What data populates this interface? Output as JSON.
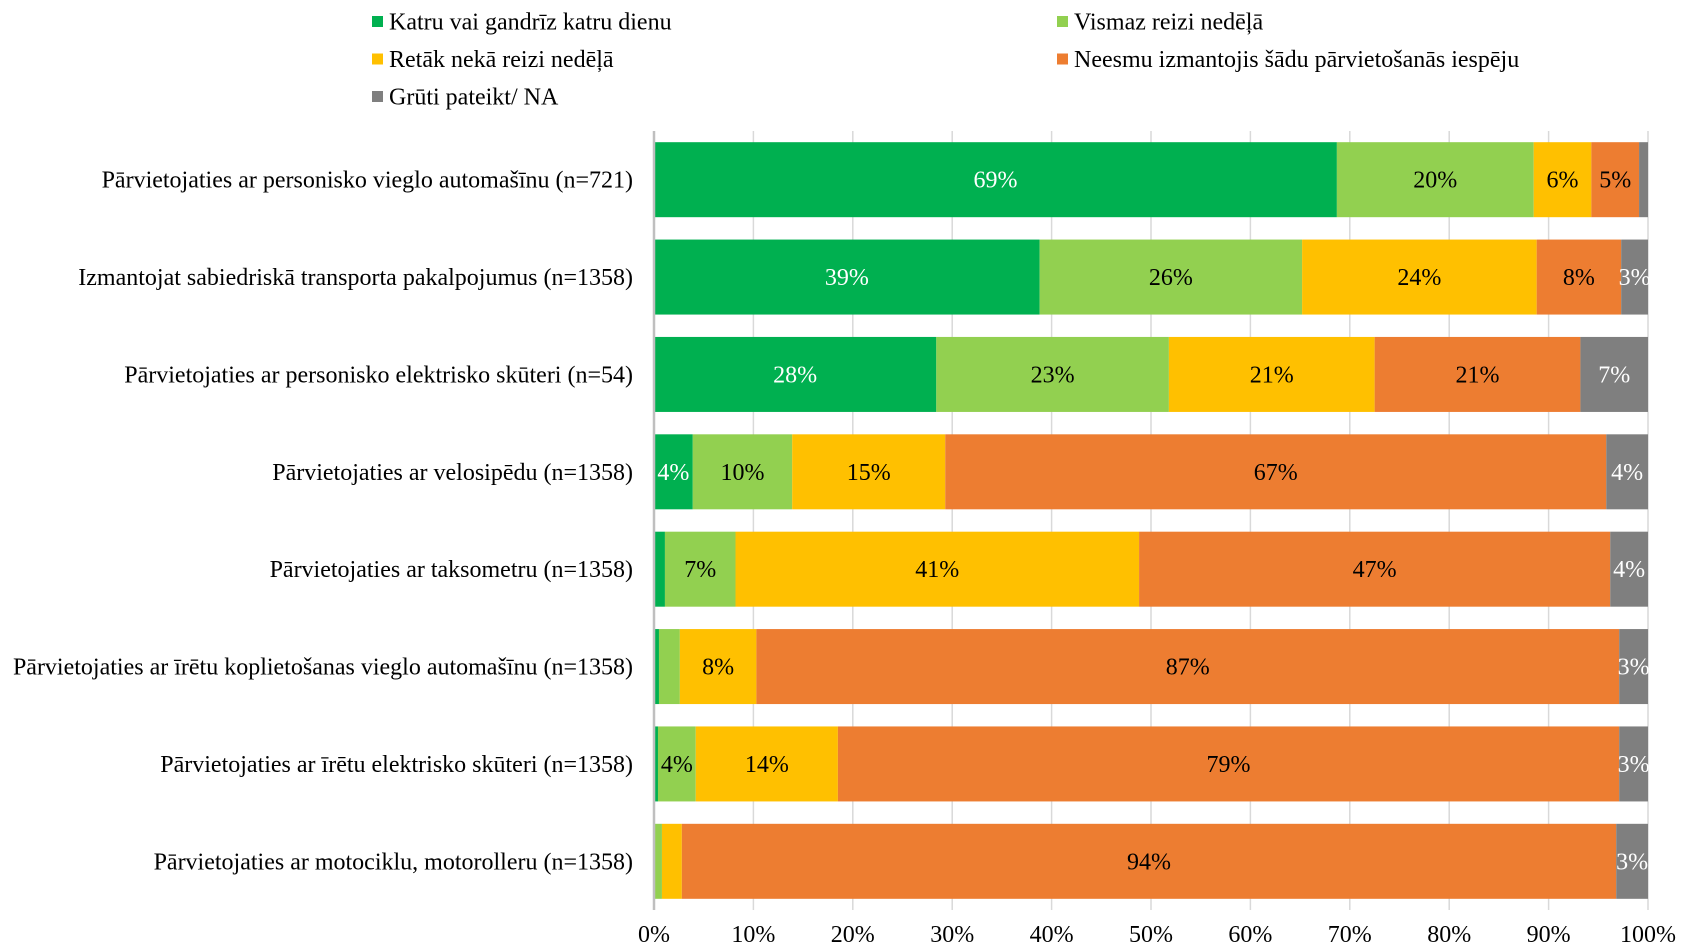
{
  "chart_data": {
    "type": "bar",
    "orientation": "horizontal",
    "stacked": true,
    "categories": [
      "Pārvietojaties ar personisko vieglo automašīnu (n=721)",
      "Izmantojat sabiedriskā transporta pakalpojumus (n=1358)",
      "Pārvietojaties ar personisko elektrisko skūteri (n=54)",
      "Pārvietojaties ar velosipēdu (n=1358)",
      "Pārvietojaties ar taksometru (n=1358)",
      "Pārvietojaties ar īrētu koplietošanas vieglo automašīnu (n=1358)",
      "Pārvietojaties ar īrētu elektrisko skūteri (n=1358)",
      "Pārvietojaties ar motociklu, motorolleru (n=1358)"
    ],
    "series": [
      {
        "name": "Katru vai gandrīz katru dienu",
        "color": "#00B050",
        "label_color": "#FFFFFF",
        "values": [
          68.7,
          38.8,
          28.4,
          3.9,
          1.1,
          0.5,
          0.4,
          0.1
        ],
        "labels": [
          "69%",
          "39%",
          "28%",
          "4%",
          "",
          "",
          "",
          ""
        ]
      },
      {
        "name": "Vismaz reizi nedēļā",
        "color": "#92D050",
        "label_color": "#000000",
        "values": [
          19.8,
          26.4,
          23.4,
          10.0,
          7.1,
          2.1,
          3.8,
          0.7
        ],
        "labels": [
          "20%",
          "26%",
          "23%",
          "10%",
          "7%",
          "",
          "4%",
          ""
        ]
      },
      {
        "name": "Retāk nekā reizi nedēļā",
        "color": "#FFC000",
        "label_color": "#000000",
        "values": [
          5.8,
          23.6,
          20.7,
          15.4,
          40.6,
          7.7,
          14.3,
          2.0
        ],
        "labels": [
          "6%",
          "24%",
          "21%",
          "15%",
          "41%",
          "8%",
          "14%",
          ""
        ]
      },
      {
        "name": "Neesmu izmantojis šādu pārvietošanās iespēju",
        "color": "#ED7D31",
        "label_color": "#000000",
        "values": [
          4.8,
          8.5,
          20.7,
          66.5,
          47.4,
          86.8,
          78.6,
          94.0
        ],
        "labels": [
          "5%",
          "8%",
          "21%",
          "67%",
          "47%",
          "87%",
          "79%",
          "94%"
        ]
      },
      {
        "name": "Grūti pateikt/ NA",
        "color": "#7F7F7F",
        "label_color": "#FFFFFF",
        "values": [
          0.9,
          2.7,
          6.8,
          4.2,
          3.8,
          2.9,
          2.9,
          3.2
        ],
        "labels": [
          "",
          "3%",
          "7%",
          "4%",
          "4%",
          "3%",
          "3%",
          "3%"
        ]
      }
    ],
    "xlim": [
      0,
      100
    ],
    "x_ticks": [
      0,
      10,
      20,
      30,
      40,
      50,
      60,
      70,
      80,
      90,
      100
    ],
    "x_tick_labels": [
      "0%",
      "10%",
      "20%",
      "30%",
      "40%",
      "50%",
      "60%",
      "70%",
      "80%",
      "90%",
      "100%"
    ],
    "grid": true,
    "legend": "top"
  }
}
